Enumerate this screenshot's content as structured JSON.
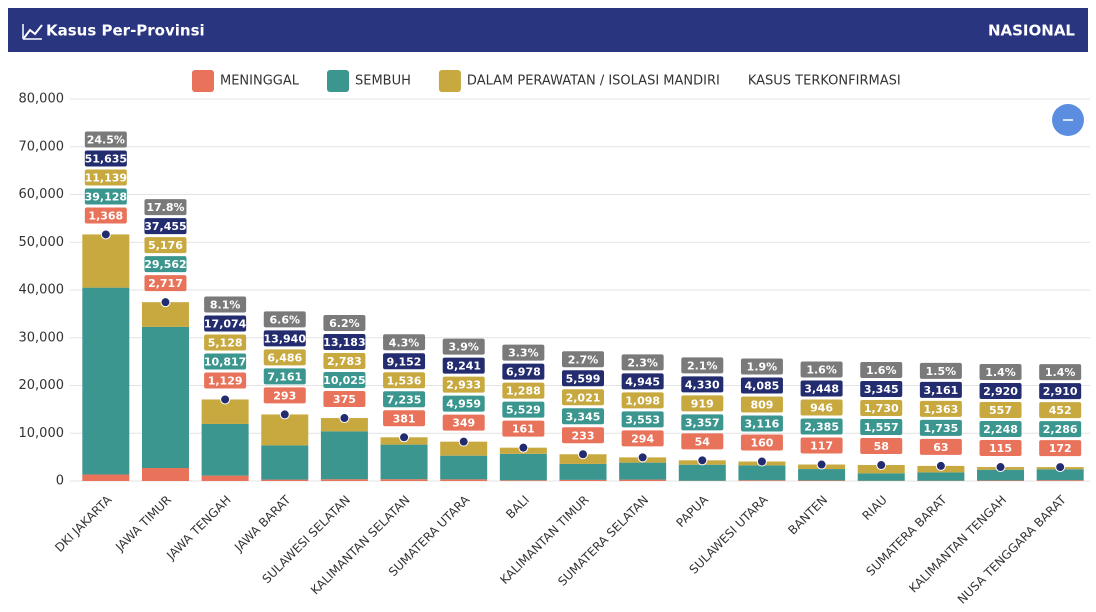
{
  "header": {
    "title": "Kasus Per-Provinsi",
    "scope": "NASIONAL"
  },
  "chart_data": {
    "type": "bar",
    "categories": [
      "DKI JAKARTA",
      "JAWA TIMUR",
      "JAWA TENGAH",
      "JAWA BARAT",
      "SULAWESI SELATAN",
      "KALIMANTAN SELATAN",
      "SUMATERA UTARA",
      "BALI",
      "KALIMANTAN TIMUR",
      "SUMATERA SELATAN",
      "PAPUA",
      "SULAWESI UTARA",
      "BANTEN",
      "RIAU",
      "SUMATERA BARAT",
      "KALIMANTAN TENGAH",
      "NUSA TENGGARA BARAT"
    ],
    "series": [
      {
        "name": "MENINGGAL",
        "color": "#e8735a",
        "stacked": true,
        "values": [
          1368,
          2717,
          1129,
          293,
          375,
          381,
          349,
          161,
          233,
          294,
          54,
          160,
          117,
          58,
          63,
          115,
          172
        ],
        "value_labels": [
          "1,368",
          "2,717",
          "1,129",
          "293",
          "375",
          "381",
          "349",
          "161",
          "233",
          "294",
          "54",
          "160",
          "117",
          "58",
          "63",
          "115",
          "172"
        ]
      },
      {
        "name": "SEMBUH",
        "color": "#3a968e",
        "stacked": true,
        "values": [
          39128,
          29562,
          10817,
          7161,
          10025,
          7235,
          4959,
          5529,
          3345,
          3553,
          3357,
          3116,
          2385,
          1557,
          1735,
          2248,
          2286
        ],
        "value_labels": [
          "39,128",
          "29,562",
          "10,817",
          "7,161",
          "10,025",
          "7,235",
          "4,959",
          "5,529",
          "3,345",
          "3,553",
          "3,357",
          "3,116",
          "2,385",
          "1,557",
          "1,735",
          "2,248",
          "2,286"
        ]
      },
      {
        "name": "DALAM PERAWATAN / ISOLASI MANDIRI",
        "color": "#c8a93f",
        "stacked": true,
        "values": [
          11139,
          5176,
          5128,
          6486,
          2783,
          1536,
          2933,
          1288,
          2021,
          1098,
          919,
          809,
          946,
          1730,
          1363,
          557,
          452
        ],
        "value_labels": [
          "11,139",
          "5,176",
          "5,128",
          "6,486",
          "2,783",
          "1,536",
          "2,933",
          "1,288",
          "2,021",
          "1,098",
          "919",
          "809",
          "946",
          "1,730",
          "1,363",
          "557",
          "452"
        ]
      },
      {
        "name": "KASUS TERKONFIRMASI",
        "color": "#232c6e",
        "stacked": false,
        "values": [
          51635,
          37455,
          17074,
          13940,
          13183,
          9152,
          8241,
          6978,
          5599,
          4945,
          4330,
          4085,
          3448,
          3345,
          3161,
          2920,
          2910
        ],
        "value_labels": [
          "51,635",
          "37,455",
          "17,074",
          "13,940",
          "13,183",
          "9,152",
          "8,241",
          "6,978",
          "5,599",
          "4,945",
          "4,330",
          "4,085",
          "3,448",
          "3,345",
          "3,161",
          "2,920",
          "2,910"
        ]
      }
    ],
    "shares": {
      "color": "#7a7a7a",
      "values": [
        24.5,
        17.8,
        8.1,
        6.6,
        6.2,
        4.3,
        3.9,
        3.3,
        2.7,
        2.3,
        2.1,
        1.9,
        1.6,
        1.6,
        1.5,
        1.4,
        1.4
      ],
      "value_labels": [
        "24.5%",
        "17.8%",
        "8.1%",
        "6.6%",
        "6.2%",
        "4.3%",
        "3.9%",
        "3.3%",
        "2.7%",
        "2.3%",
        "2.1%",
        "1.9%",
        "1.6%",
        "1.6%",
        "1.5%",
        "1.4%",
        "1.4%"
      ]
    },
    "ylim": [
      0,
      80000
    ],
    "yticks": [
      0,
      {
        "value": 10000,
        "label": "10,000"
      },
      {
        "value": 20000,
        "label": "20,000"
      },
      {
        "value": 30000,
        "label": "30,000"
      },
      {
        "value": 40000,
        "label": "40,000"
      },
      {
        "value": 50000,
        "label": "50,000"
      },
      {
        "value": 60000,
        "label": "60,000"
      },
      {
        "value": 70000,
        "label": "70,000"
      },
      {
        "value": 80000,
        "label": "80,000"
      }
    ],
    "grid": true
  }
}
